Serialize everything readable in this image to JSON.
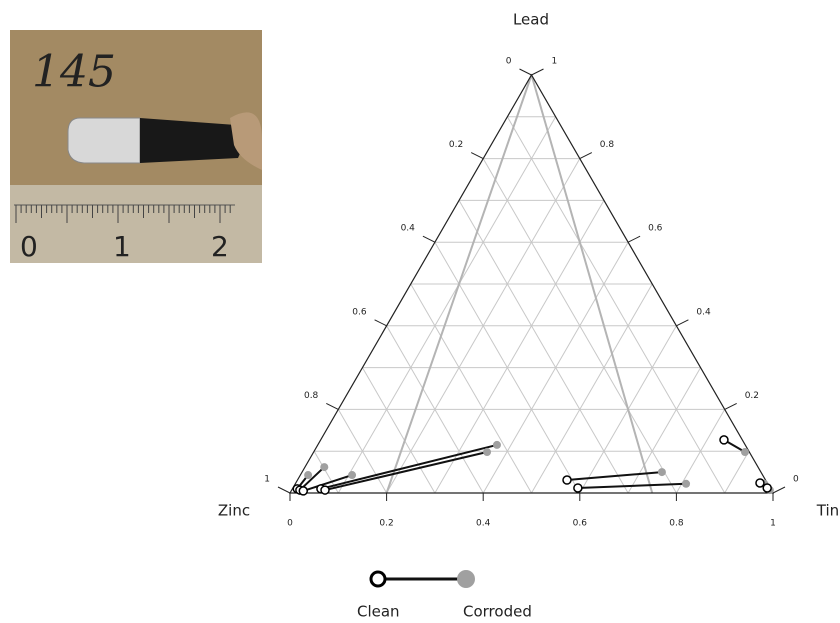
{
  "photo": {
    "label": "145",
    "ruler": [
      "0",
      "1",
      "2"
    ]
  },
  "chart_data": {
    "type": "ternary",
    "axes": {
      "lead": {
        "label": "Lead",
        "ticks": [
          0,
          0.2,
          0.4,
          0.6,
          0.8,
          1
        ]
      },
      "zinc": {
        "label": "Zinc",
        "ticks": [
          0,
          0.2,
          0.4,
          0.6,
          0.8,
          1
        ]
      },
      "tin": {
        "label": "Tin",
        "ticks": [
          0,
          0.2,
          0.4,
          0.6,
          0.8,
          1
        ]
      }
    },
    "gridlines": [
      0.1,
      0.2,
      0.3,
      0.4,
      0.5,
      0.6,
      0.7,
      0.8,
      0.9
    ],
    "grid_color": "#c8c8c8",
    "reference_lines": [
      0.2,
      0.75
    ],
    "reference_color": "#b4b4b4",
    "series": [
      {
        "name": "Clean",
        "color": "#000000",
        "fill": "#ffffff",
        "tin": [
          0.01,
          0.017,
          0.025,
          0.059,
          0.069,
          0.558,
          0.59,
          0.835,
          0.961,
          0.982
        ],
        "lead": [
          0.01,
          0.007,
          0.005,
          0.01,
          0.007,
          0.031,
          0.012,
          0.127,
          0.024,
          0.012
        ]
      },
      {
        "name": "Corroded",
        "color": "#a0a0a0",
        "fill": "#a0a0a0",
        "tin": [
          0.016,
          0.04,
          0.107,
          0.371,
          0.359,
          0.745,
          0.809,
          0.893,
          0.971,
          0.99
        ],
        "lead": [
          0.043,
          0.062,
          0.043,
          0.115,
          0.098,
          0.05,
          0.022,
          0.098,
          0.022,
          0.007
        ]
      }
    ]
  }
}
